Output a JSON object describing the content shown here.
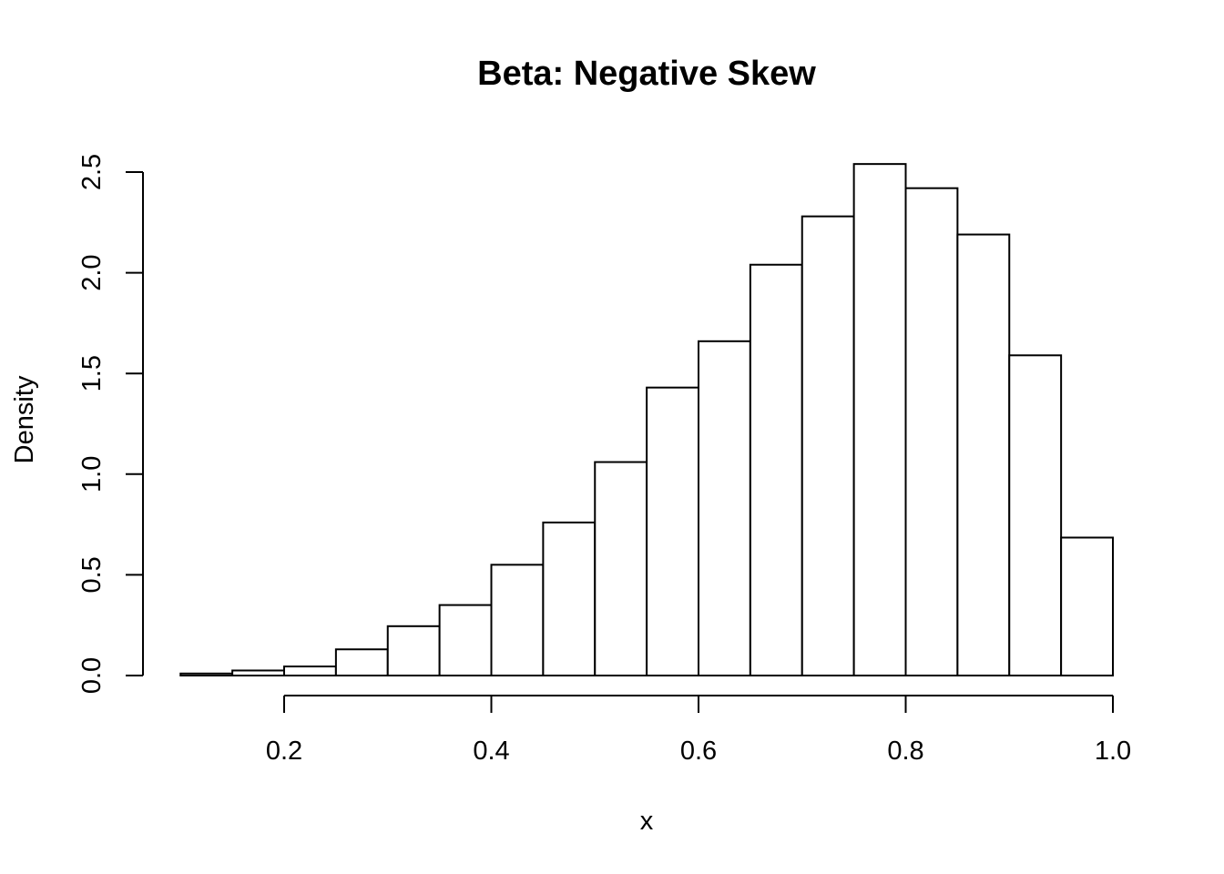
{
  "chart_data": {
    "type": "bar",
    "title": "Beta: Negative Skew",
    "xlabel": "x",
    "ylabel": "Density",
    "bin_edges": [
      0.1,
      0.15,
      0.2,
      0.25,
      0.3,
      0.35,
      0.4,
      0.45,
      0.5,
      0.55,
      0.6,
      0.65,
      0.7,
      0.75,
      0.8,
      0.85,
      0.9,
      0.95,
      1.0
    ],
    "values": [
      0.01,
      0.025,
      0.045,
      0.13,
      0.245,
      0.35,
      0.55,
      0.76,
      1.06,
      1.43,
      1.66,
      2.04,
      2.28,
      2.54,
      2.42,
      2.19,
      1.59,
      0.685
    ],
    "xlim": [
      0.2,
      1.0
    ],
    "ylim": [
      0,
      2.5
    ],
    "x_ticks": [
      "0.2",
      "0.4",
      "0.6",
      "0.8",
      "1.0"
    ],
    "y_ticks": [
      "0.0",
      "0.5",
      "1.0",
      "1.5",
      "2.0",
      "2.5"
    ],
    "grid": false,
    "legend": "none"
  }
}
